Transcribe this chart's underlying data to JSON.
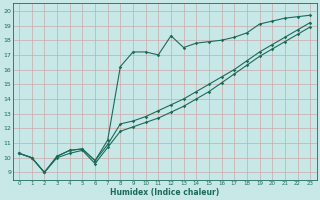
{
  "xlabel": "Humidex (Indice chaleur)",
  "background_color": "#c8e8e8",
  "grid_color": "#aacccc",
  "line_color": "#1a6b5a",
  "xlim": [
    -0.5,
    23.5
  ],
  "ylim": [
    8.5,
    20.5
  ],
  "xticks": [
    0,
    1,
    2,
    3,
    4,
    5,
    6,
    7,
    8,
    9,
    10,
    11,
    12,
    13,
    14,
    15,
    16,
    17,
    18,
    19,
    20,
    21,
    22,
    23
  ],
  "yticks": [
    9,
    10,
    11,
    12,
    13,
    14,
    15,
    16,
    17,
    18,
    19,
    20
  ],
  "line1_x": [
    0,
    1,
    2,
    3,
    4,
    5,
    6,
    7,
    8,
    9,
    10,
    11,
    12,
    13,
    14,
    15,
    16,
    17,
    18,
    19,
    20,
    21,
    22,
    23
  ],
  "line1_y": [
    10.3,
    10.0,
    9.0,
    10.1,
    10.5,
    10.6,
    9.8,
    11.2,
    16.2,
    17.2,
    17.2,
    17.0,
    18.3,
    17.5,
    17.8,
    17.9,
    18.0,
    18.2,
    18.5,
    19.1,
    19.3,
    19.5,
    19.6,
    19.7
  ],
  "line2_x": [
    0,
    1,
    2,
    3,
    4,
    5,
    6,
    7,
    8,
    9,
    10,
    11,
    12,
    13,
    14,
    15,
    16,
    17,
    18,
    19,
    20,
    21,
    22,
    23
  ],
  "line2_y": [
    10.3,
    10.0,
    9.0,
    10.1,
    10.5,
    10.6,
    9.8,
    10.9,
    12.3,
    12.5,
    12.8,
    13.2,
    13.6,
    14.0,
    14.5,
    15.0,
    15.5,
    16.0,
    16.6,
    17.2,
    17.7,
    18.2,
    18.7,
    19.2
  ],
  "line3_x": [
    0,
    1,
    2,
    3,
    4,
    5,
    6,
    7,
    8,
    9,
    10,
    11,
    12,
    13,
    14,
    15,
    16,
    17,
    18,
    19,
    20,
    21,
    22,
    23
  ],
  "line3_y": [
    10.3,
    10.0,
    9.0,
    10.0,
    10.3,
    10.5,
    9.6,
    10.7,
    11.8,
    12.1,
    12.4,
    12.7,
    13.1,
    13.5,
    14.0,
    14.5,
    15.1,
    15.7,
    16.3,
    16.9,
    17.4,
    17.9,
    18.4,
    18.9
  ]
}
